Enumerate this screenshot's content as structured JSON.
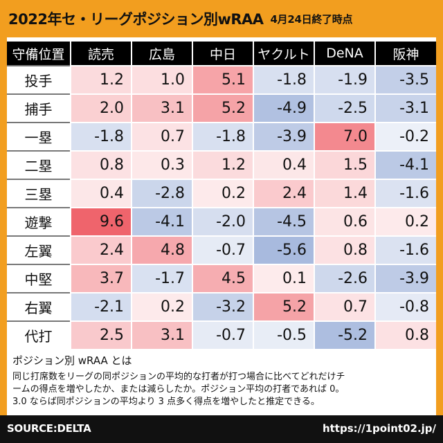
{
  "header": {
    "title": "2022年セ・リーグポジション別wRAA",
    "subtitle": "4月24日終了時点"
  },
  "chart_data": {
    "type": "table",
    "corner_label": "守備位置",
    "columns": [
      "読売",
      "広島",
      "中日",
      "ヤクルト",
      "DeNA",
      "阪神"
    ],
    "rows": [
      {
        "label": "投手",
        "values": [
          1.2,
          1.0,
          5.1,
          -1.8,
          -1.9,
          -3.5
        ]
      },
      {
        "label": "捕手",
        "values": [
          2.0,
          3.1,
          5.2,
          -4.9,
          -2.5,
          -3.1
        ]
      },
      {
        "label": "一塁",
        "values": [
          -1.8,
          0.7,
          -1.8,
          -3.9,
          7.0,
          -0.2
        ]
      },
      {
        "label": "二塁",
        "values": [
          0.8,
          0.3,
          1.2,
          0.4,
          1.5,
          -4.1
        ]
      },
      {
        "label": "三塁",
        "values": [
          0.4,
          -2.8,
          0.2,
          2.4,
          1.4,
          -1.6
        ]
      },
      {
        "label": "遊撃",
        "values": [
          9.6,
          -4.1,
          -2.0,
          -4.5,
          0.6,
          0.2
        ]
      },
      {
        "label": "左翼",
        "values": [
          2.4,
          4.8,
          -0.7,
          -5.6,
          0.8,
          -1.6
        ]
      },
      {
        "label": "中堅",
        "values": [
          3.7,
          -1.7,
          4.5,
          0.1,
          -2.6,
          -3.9
        ]
      },
      {
        "label": "右翼",
        "values": [
          -2.1,
          0.2,
          -3.2,
          5.2,
          0.7,
          -0.8
        ]
      },
      {
        "label": "代打",
        "values": [
          2.5,
          3.1,
          -0.7,
          -0.5,
          -5.2,
          0.8
        ]
      }
    ],
    "color_scale": {
      "positive": "#ee5c64",
      "negative": "#6f8cc8",
      "neutral": "#ffffff"
    }
  },
  "description": {
    "title": "ポジション別 wRAA とは",
    "lines": [
      "同じ打席数をリーグの同ポジションの平均的な打者が打つ場合に比べてどれだけチ",
      "ームの得点を増やしたか、または減らしたか。ポジション平均の打者であれば 0。",
      "3.0 ならば同ポジションの平均より 3 点多く得点を増やしたと推定できる。"
    ]
  },
  "footer": {
    "source": "SOURCE:DELTA",
    "url": "https://1point02.jp/"
  }
}
